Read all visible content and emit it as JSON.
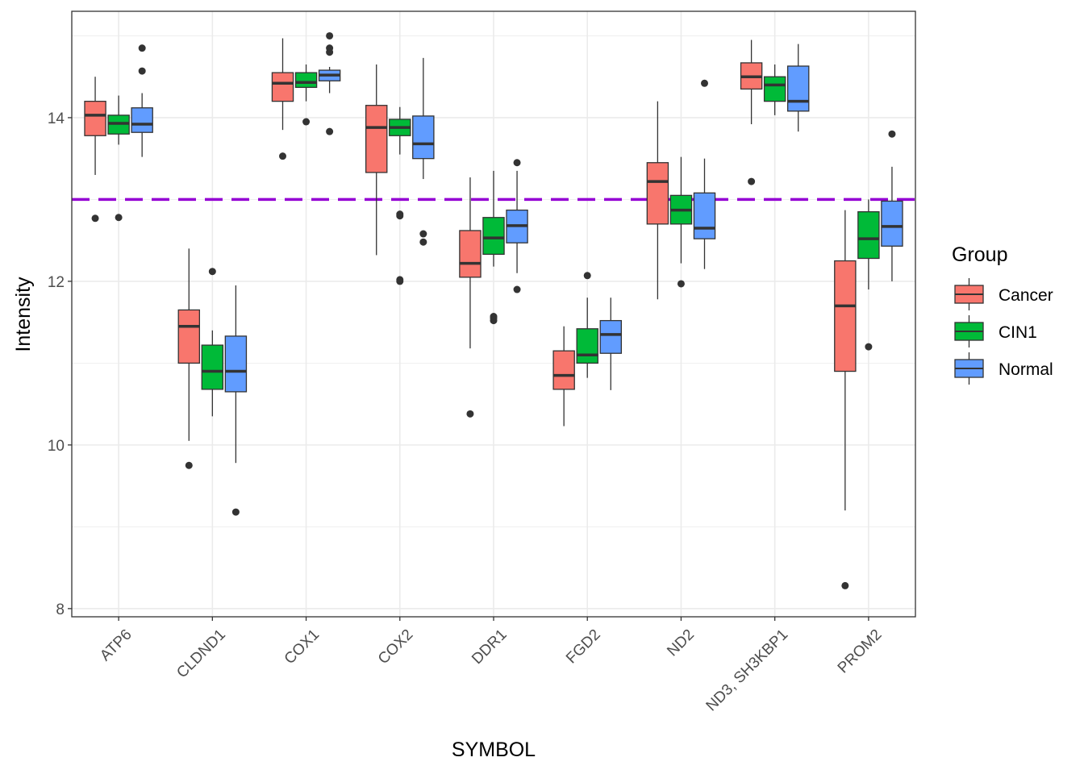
{
  "chart_data": {
    "type": "boxplot",
    "xlabel": "SYMBOL",
    "ylabel": "Intensity",
    "ylim": [
      7.9,
      15.3
    ],
    "yticks": [
      8,
      10,
      12,
      14
    ],
    "grid": true,
    "reference_line": {
      "y": 13,
      "style": "dashed",
      "color": "#9400D3"
    },
    "legend": {
      "title": "Group",
      "placement": "right",
      "entries": [
        {
          "name": "Cancer",
          "color": "#F8766D"
        },
        {
          "name": "CIN1",
          "color": "#00BA38"
        },
        {
          "name": "Normal",
          "color": "#619CFF"
        }
      ]
    },
    "categories": [
      "ATP6",
      "CLDND1",
      "COX1",
      "COX2",
      "DDR1",
      "FGD2",
      "ND2",
      "ND3, SH3KBP1",
      "PROM2"
    ],
    "series": [
      {
        "name": "Cancer",
        "color": "#F8766D",
        "boxes": [
          {
            "whisker_low": 13.3,
            "q1": 13.78,
            "median": 14.03,
            "q3": 14.2,
            "whisker_high": 14.5,
            "outliers": [
              12.77
            ]
          },
          {
            "whisker_low": 10.05,
            "q1": 11.0,
            "median": 11.45,
            "q3": 11.65,
            "whisker_high": 12.4,
            "outliers": [
              9.75
            ]
          },
          {
            "whisker_low": 13.85,
            "q1": 14.2,
            "median": 14.42,
            "q3": 14.55,
            "whisker_high": 14.97,
            "outliers": [
              13.53
            ]
          },
          {
            "whisker_low": 12.32,
            "q1": 13.33,
            "median": 13.88,
            "q3": 14.15,
            "whisker_high": 14.65,
            "outliers": []
          },
          {
            "whisker_low": 11.18,
            "q1": 12.05,
            "median": 12.22,
            "q3": 12.62,
            "whisker_high": 13.27,
            "outliers": [
              10.38
            ]
          },
          {
            "whisker_low": 10.23,
            "q1": 10.68,
            "median": 10.85,
            "q3": 11.15,
            "whisker_high": 11.45,
            "outliers": []
          },
          {
            "whisker_low": 11.78,
            "q1": 12.7,
            "median": 13.22,
            "q3": 13.45,
            "whisker_high": 14.2,
            "outliers": []
          },
          {
            "whisker_low": 13.92,
            "q1": 14.35,
            "median": 14.5,
            "q3": 14.67,
            "whisker_high": 14.95,
            "outliers": [
              13.22
            ]
          },
          {
            "whisker_low": 9.2,
            "q1": 10.9,
            "median": 11.7,
            "q3": 12.25,
            "whisker_high": 12.87,
            "outliers": [
              8.28
            ]
          }
        ]
      },
      {
        "name": "CIN1",
        "color": "#00BA38",
        "boxes": [
          {
            "whisker_low": 13.67,
            "q1": 13.8,
            "median": 13.93,
            "q3": 14.03,
            "whisker_high": 14.27,
            "outliers": [
              12.78
            ]
          },
          {
            "whisker_low": 10.35,
            "q1": 10.68,
            "median": 10.9,
            "q3": 11.22,
            "whisker_high": 11.4,
            "outliers": [
              12.12
            ]
          },
          {
            "whisker_low": 14.2,
            "q1": 14.37,
            "median": 14.43,
            "q3": 14.55,
            "whisker_high": 14.65,
            "outliers": [
              13.95
            ]
          },
          {
            "whisker_low": 13.55,
            "q1": 13.78,
            "median": 13.88,
            "q3": 13.98,
            "whisker_high": 14.13,
            "outliers": [
              12.8,
              12.82,
              12.0,
              12.02
            ]
          },
          {
            "whisker_low": 12.18,
            "q1": 12.33,
            "median": 12.53,
            "q3": 12.78,
            "whisker_high": 13.35,
            "outliers": [
              11.52,
              11.55,
              11.57
            ]
          },
          {
            "whisker_low": 10.82,
            "q1": 11.0,
            "median": 11.1,
            "q3": 11.42,
            "whisker_high": 11.8,
            "outliers": [
              12.07
            ]
          },
          {
            "whisker_low": 12.22,
            "q1": 12.7,
            "median": 12.87,
            "q3": 13.05,
            "whisker_high": 13.52,
            "outliers": [
              11.97
            ]
          },
          {
            "whisker_low": 14.03,
            "q1": 14.2,
            "median": 14.4,
            "q3": 14.5,
            "whisker_high": 14.65,
            "outliers": []
          },
          {
            "whisker_low": 11.9,
            "q1": 12.28,
            "median": 12.52,
            "q3": 12.85,
            "whisker_high": 13.0,
            "outliers": [
              11.2
            ]
          }
        ]
      },
      {
        "name": "Normal",
        "color": "#619CFF",
        "boxes": [
          {
            "whisker_low": 13.52,
            "q1": 13.82,
            "median": 13.92,
            "q3": 14.12,
            "whisker_high": 14.3,
            "outliers": [
              14.57,
              14.85
            ]
          },
          {
            "whisker_low": 9.78,
            "q1": 10.65,
            "median": 10.9,
            "q3": 11.33,
            "whisker_high": 11.95,
            "outliers": [
              9.18
            ]
          },
          {
            "whisker_low": 14.3,
            "q1": 14.45,
            "median": 14.52,
            "q3": 14.58,
            "whisker_high": 14.62,
            "outliers": [
              13.83,
              14.8,
              14.85,
              15.0
            ]
          },
          {
            "whisker_low": 13.25,
            "q1": 13.5,
            "median": 13.68,
            "q3": 14.02,
            "whisker_high": 14.73,
            "outliers": [
              12.48,
              12.58
            ]
          },
          {
            "whisker_low": 12.1,
            "q1": 12.47,
            "median": 12.68,
            "q3": 12.87,
            "whisker_high": 13.35,
            "outliers": [
              11.9,
              13.45
            ]
          },
          {
            "whisker_low": 10.67,
            "q1": 11.12,
            "median": 11.35,
            "q3": 11.52,
            "whisker_high": 11.8,
            "outliers": []
          },
          {
            "whisker_low": 12.15,
            "q1": 12.52,
            "median": 12.65,
            "q3": 13.08,
            "whisker_high": 13.5,
            "outliers": [
              14.42
            ]
          },
          {
            "whisker_low": 13.83,
            "q1": 14.08,
            "median": 14.2,
            "q3": 14.63,
            "whisker_high": 14.9,
            "outliers": []
          },
          {
            "whisker_low": 12.0,
            "q1": 12.43,
            "median": 12.67,
            "q3": 12.98,
            "whisker_high": 13.4,
            "outliers": [
              13.8
            ]
          }
        ]
      }
    ]
  }
}
